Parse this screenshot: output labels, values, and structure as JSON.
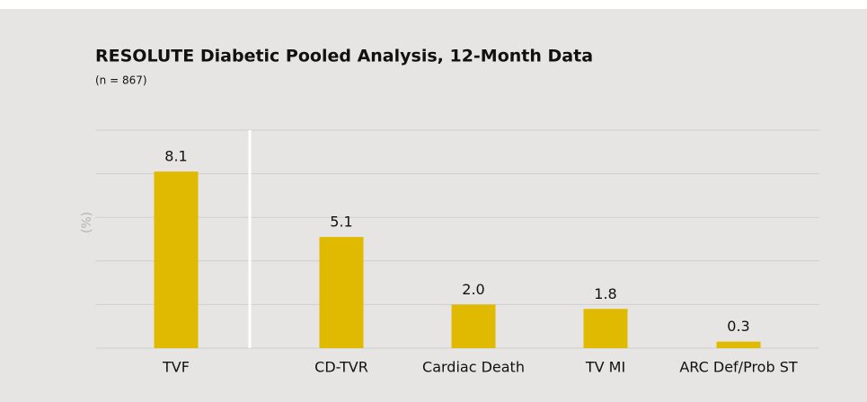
{
  "chart_data": {
    "type": "bar",
    "title": "RESOLUTE Diabetic Pooled Analysis, 12-Month Data",
    "subtitle": "(n = 867)",
    "y_label": "(%)",
    "categories": [
      "TVF",
      "CD-TVR",
      "Cardiac Death",
      "TV MI",
      "ARC Def/Prob ST"
    ],
    "values": [
      8.1,
      5.1,
      2.0,
      1.8,
      0.3
    ],
    "value_labels": [
      "8.1",
      "5.1",
      "2.0",
      "1.8",
      "0.3"
    ],
    "color": "#dfba00",
    "ylim": [
      0,
      10
    ],
    "yticks": [
      0,
      2,
      4,
      6,
      8,
      10
    ],
    "grid": true
  }
}
